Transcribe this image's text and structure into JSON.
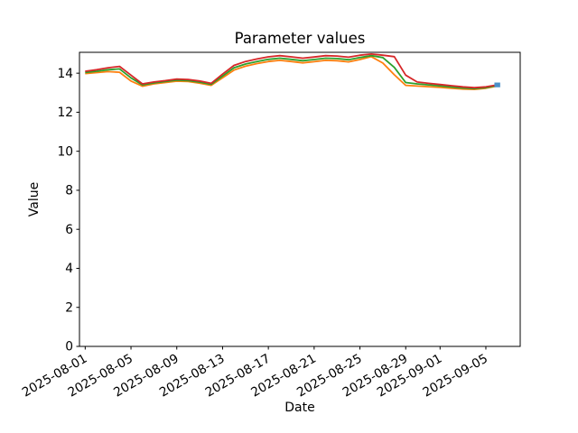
{
  "chart_data": {
    "type": "line",
    "title": "Parameter values",
    "xlabel": "Date",
    "ylabel": "Value",
    "ylim": [
      0,
      15.07
    ],
    "grid": false,
    "legend": "none",
    "ytick_values": [
      0,
      2,
      4,
      6,
      8,
      10,
      12,
      14
    ],
    "ytick_labels": [
      "0",
      "2",
      "4",
      "6",
      "8",
      "10",
      "12",
      "14"
    ],
    "xtick_day_indices": [
      0,
      4,
      8,
      12,
      16,
      20,
      24,
      28,
      31,
      35
    ],
    "xtick_labels": [
      "2025-08-01",
      "2025-08-05",
      "2025-08-09",
      "2025-08-13",
      "2025-08-17",
      "2025-08-21",
      "2025-08-25",
      "2025-08-29",
      "2025-09-01",
      "2025-09-05"
    ],
    "x": [
      "2025-08-01",
      "2025-08-02",
      "2025-08-03",
      "2025-08-04",
      "2025-08-05",
      "2025-08-06",
      "2025-08-07",
      "2025-08-08",
      "2025-08-09",
      "2025-08-10",
      "2025-08-11",
      "2025-08-12",
      "2025-08-13",
      "2025-08-14",
      "2025-08-15",
      "2025-08-16",
      "2025-08-17",
      "2025-08-18",
      "2025-08-19",
      "2025-08-20",
      "2025-08-21",
      "2025-08-22",
      "2025-08-23",
      "2025-08-24",
      "2025-08-25",
      "2025-08-26",
      "2025-08-27",
      "2025-08-28",
      "2025-08-29",
      "2025-08-30",
      "2025-08-31",
      "2025-09-01",
      "2025-09-02",
      "2025-09-03",
      "2025-09-04",
      "2025-09-05",
      "2025-09-06"
    ],
    "series": [
      {
        "color": "#d62728",
        "values": [
          14.1,
          14.18,
          14.28,
          14.35,
          13.9,
          13.45,
          13.55,
          13.62,
          13.7,
          13.68,
          13.6,
          13.48,
          13.95,
          14.4,
          14.6,
          14.73,
          14.84,
          14.9,
          14.84,
          14.77,
          14.83,
          14.9,
          14.88,
          14.82,
          14.92,
          14.98,
          14.92,
          14.85,
          13.9,
          13.55,
          13.48,
          13.42,
          13.36,
          13.3,
          13.26,
          13.3,
          13.4
        ]
      },
      {
        "color": "#2ca02c",
        "values": [
          14.04,
          14.1,
          14.18,
          14.22,
          13.76,
          13.4,
          13.5,
          13.57,
          13.64,
          13.62,
          13.54,
          13.43,
          13.85,
          14.28,
          14.47,
          14.6,
          14.71,
          14.77,
          14.71,
          14.64,
          14.7,
          14.77,
          14.75,
          14.69,
          14.8,
          14.9,
          14.8,
          14.3,
          13.52,
          13.45,
          13.4,
          13.35,
          13.29,
          13.24,
          13.21,
          13.26,
          13.37
        ]
      },
      {
        "color": "#ff7f0e",
        "values": [
          13.98,
          14.03,
          14.08,
          14.05,
          13.6,
          13.33,
          13.45,
          13.52,
          13.59,
          13.57,
          13.49,
          13.38,
          13.76,
          14.16,
          14.36,
          14.49,
          14.6,
          14.66,
          14.6,
          14.53,
          14.59,
          14.66,
          14.64,
          14.58,
          14.7,
          14.85,
          14.52,
          13.92,
          13.38,
          13.34,
          13.31,
          13.27,
          13.23,
          13.19,
          13.17,
          13.23,
          13.34
        ]
      }
    ],
    "endpoint_marker": {
      "date": "2025-09-06",
      "value": 13.4,
      "color": "#4a90c9",
      "shape": "square"
    }
  }
}
